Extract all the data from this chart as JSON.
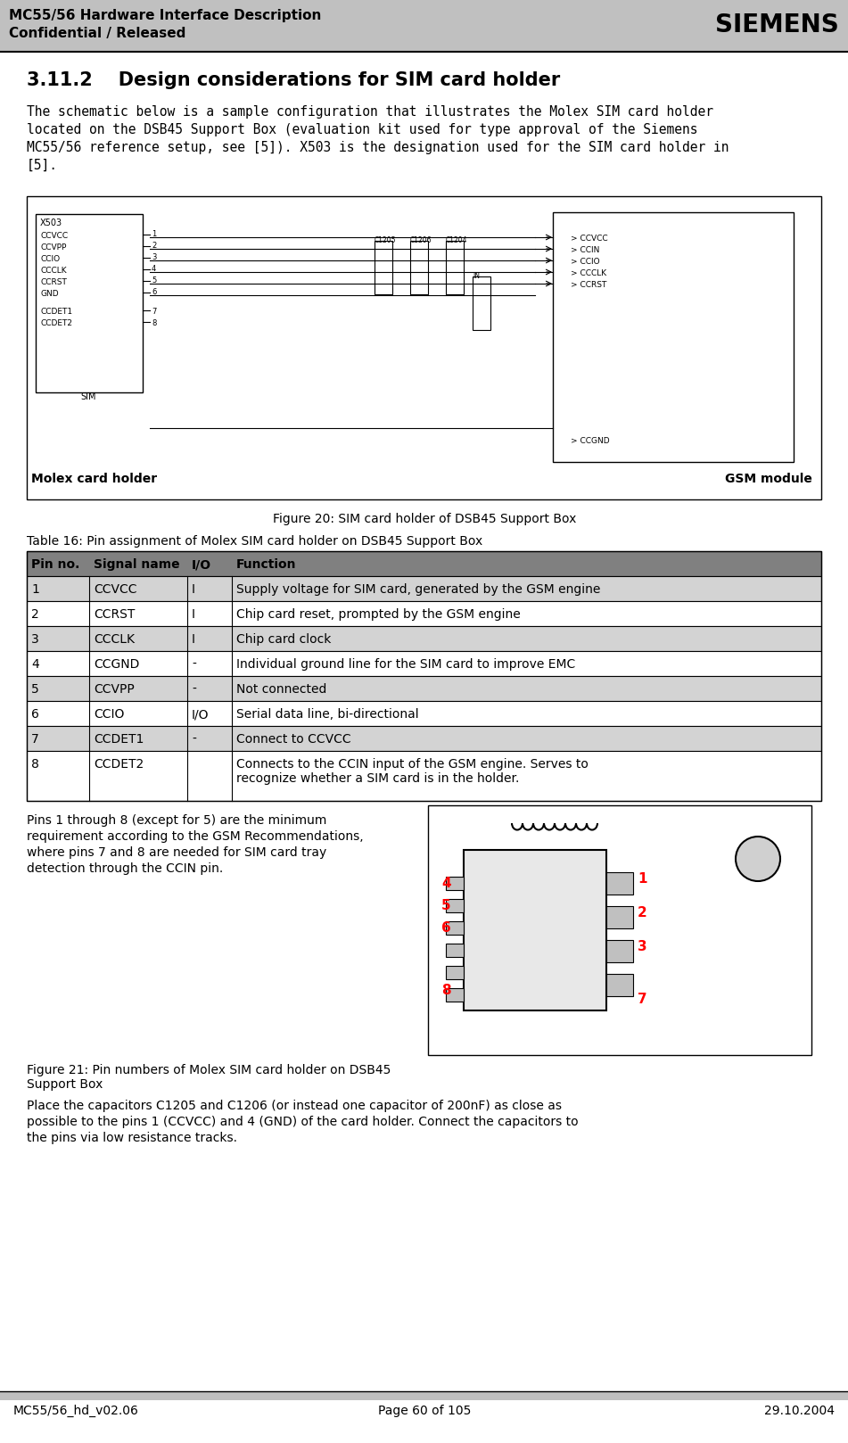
{
  "header_line1": "MC55/56 Hardware Interface Description",
  "header_line2": "Confidential / Released",
  "siemens_logo": "SIEMENS",
  "section_title": "3.11.2    Design considerations for SIM card holder",
  "intro_text": "The schematic below is a sample configuration that illustrates the Molex SIM card holder\nlocated on the DSB45 Support Box (evaluation kit used for type approval of the Siemens\nMC55/56 reference setup, see [5]). X503 is the designation used for the SIM card holder in\n[5].",
  "figure20_caption": "Figure 20: SIM card holder of DSB45 Support Box",
  "table_title": "Table 16: Pin assignment of Molex SIM card holder on DSB45 Support Box",
  "table_headers": [
    "Pin no.",
    "Signal name",
    "I/O",
    "Function"
  ],
  "table_rows": [
    [
      "1",
      "CCVCC",
      "I",
      "Supply voltage for SIM card, generated by the GSM engine"
    ],
    [
      "2",
      "CCRST",
      "I",
      "Chip card reset, prompted by the GSM engine"
    ],
    [
      "3",
      "CCCLK",
      "I",
      "Chip card clock"
    ],
    [
      "4",
      "CCGND",
      "-",
      "Individual ground line for the SIM card to improve EMC"
    ],
    [
      "5",
      "CCVPP",
      "-",
      "Not connected"
    ],
    [
      "6",
      "CCIO",
      "I/O",
      "Serial data line, bi-directional"
    ],
    [
      "7",
      "CCDET1",
      "-",
      "Connect to CCVCC"
    ],
    [
      "8",
      "CCDET2",
      "",
      "Connects to the CCIN input of the GSM engine. Serves to\nrecognize whether a SIM card is in the holder."
    ]
  ],
  "para_text": "Pins 1 through 8 (except for 5) are the minimum\nrequirement according to the GSM Recommendations,\nwhere pins 7 and 8 are needed for SIM card tray\ndetection through the CCIN pin.",
  "figure21_caption": "Figure 21: Pin numbers of Molex SIM card holder on DSB45\nSupport Box",
  "closing_text": "Place the capacitors C1205 and C1206 (or instead one capacitor of 200nF) as close as\npossible to the pins 1 (CCVCC) and 4 (GND) of the card holder. Connect the capacitors to\nthe pins via low resistance tracks.",
  "footer_left": "MC55/56_hd_v02.06",
  "footer_center": "Page 60 of 105",
  "footer_right": "29.10.2004",
  "molex_label": "Molex card holder",
  "gsm_label": "GSM module",
  "header_bar_color": "#c0c0c0",
  "footer_bar_color": "#c0c0c0",
  "table_header_bg": "#808080",
  "table_alt_row_bg": "#d3d3d3",
  "table_white_bg": "#ffffff",
  "pin_numbers_right": [
    "1",
    "2",
    "3",
    "7"
  ],
  "pin_numbers_left": [
    "4",
    "5",
    "6",
    "8"
  ]
}
